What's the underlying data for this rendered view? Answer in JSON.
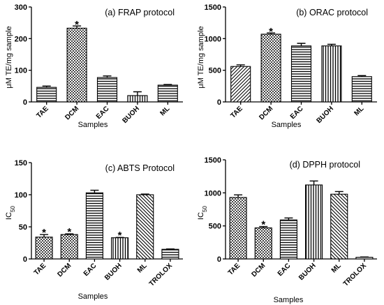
{
  "chart_data": [
    {
      "type": "bar",
      "title": "(a) FRAP protocol",
      "xlabel": "Samples",
      "ylabel": "μM TE/mg sample",
      "ylim": [
        0,
        300
      ],
      "yticks": [
        "0",
        "100",
        "200",
        "300"
      ],
      "categories": [
        "TAE",
        "DCM",
        "EAC",
        "BUOH",
        "ML"
      ],
      "values": [
        46,
        233,
        77,
        20,
        53
      ],
      "errors": [
        4,
        7,
        5,
        12,
        2
      ],
      "significant": [
        false,
        true,
        false,
        false,
        false
      ],
      "significance_marker": "*",
      "patterns": [
        "hlines",
        "checker",
        "hlines",
        "vlines",
        "hlines"
      ]
    },
    {
      "type": "bar",
      "title": "(b) ORAC protocol",
      "xlabel": "Samples",
      "ylabel": "μM TE/mg sample",
      "ylim": [
        0,
        1500
      ],
      "yticks": [
        "0",
        "500",
        "1000",
        "1500"
      ],
      "categories": [
        "TAE",
        "DCM",
        "EAC",
        "BUOH",
        "ML"
      ],
      "values": [
        560,
        1070,
        885,
        885,
        400
      ],
      "errors": [
        25,
        20,
        40,
        25,
        15
      ],
      "significant": [
        false,
        true,
        false,
        false,
        false
      ],
      "significance_marker": "*",
      "patterns": [
        "diag",
        "checker",
        "hlines",
        "vlines",
        "hlines"
      ]
    },
    {
      "type": "bar",
      "title": "(c) ABTS Protocol",
      "xlabel": "Samples",
      "ylabel_main": "IC",
      "ylabel_sub": "50",
      "ylim": [
        0,
        150
      ],
      "yticks": [
        "0",
        "50",
        "100",
        "150"
      ],
      "categories": [
        "TAE",
        "DCM",
        "EAC",
        "BUOH",
        "ML",
        "TROLOX"
      ],
      "values": [
        34,
        38,
        103,
        33,
        100,
        15
      ],
      "errors": [
        4,
        1,
        4,
        0.5,
        1,
        0.5
      ],
      "significant": [
        true,
        true,
        false,
        true,
        false,
        false
      ],
      "significance_marker": "*",
      "patterns": [
        "checker",
        "checker",
        "hlines",
        "vlines",
        "diagl",
        "hlines"
      ]
    },
    {
      "type": "bar",
      "title": "(d) DPPH protocol",
      "xlabel": "Samples",
      "ylabel_main": "IC",
      "ylabel_sub": "50",
      "ylim": [
        0,
        1500
      ],
      "yticks": [
        "0",
        "500",
        "1000",
        "1500"
      ],
      "categories": [
        "TAE",
        "DCM",
        "EAC",
        "BUOH",
        "ML",
        "TROLOX"
      ],
      "values": [
        930,
        470,
        590,
        1120,
        980,
        25
      ],
      "errors": [
        40,
        20,
        30,
        60,
        40,
        5
      ],
      "significant": [
        false,
        true,
        false,
        false,
        false,
        false
      ],
      "significance_marker": "*",
      "patterns": [
        "checker",
        "checker",
        "hlines",
        "vlines",
        "diagl",
        "hlines"
      ]
    }
  ]
}
